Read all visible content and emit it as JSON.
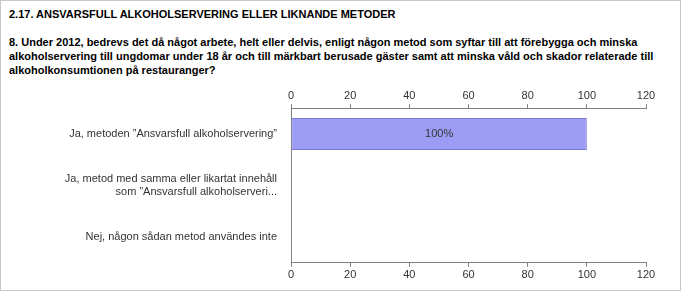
{
  "chart_data": {
    "type": "bar",
    "orientation": "horizontal",
    "title": "2.17. ANSVARSFULL ALKOHOLSERVERING ELLER LIKNANDE METODER",
    "subtitle": "8. Under 2012, bedrevs det då något arbete, helt eller delvis, enligt någon metod som syftar till att förebygga och minska alkoholservering till ungdomar under 18 år och till märkbart berusade gäster samt att minska våld och skador relaterade till alkoholkonsumtionen på restauranger?",
    "categories": [
      "Ja, metoden ”Ansvarsfull alkoholservering”",
      "Ja, metod med samma eller likartat innehåll som ”Ansvarsfull alkoholserveri...",
      "Nej, någon sådan metod användes inte"
    ],
    "values": [
      100,
      0,
      0
    ],
    "value_labels": [
      "100%",
      null,
      null
    ],
    "data_labels": true,
    "color": "#9c9cf5",
    "xlim": [
      0,
      120
    ],
    "xticks": [
      0,
      20,
      40,
      60,
      80,
      100,
      120
    ],
    "grid": false
  }
}
